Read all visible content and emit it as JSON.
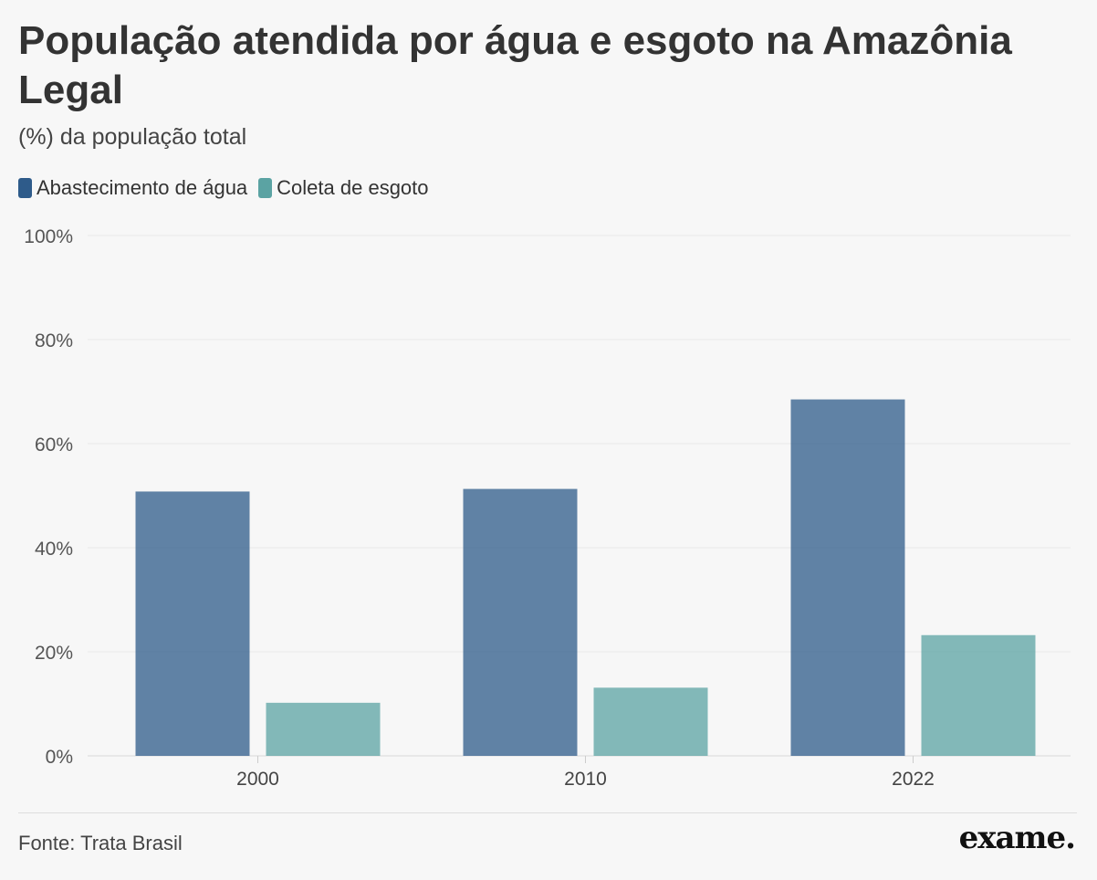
{
  "title": "População atendida por água e esgoto na Amazônia Legal",
  "subtitle": "(%) da população total",
  "source": "Fonte: Trata Brasil",
  "brand": "exame.",
  "colors": {
    "agua": "#2e5b8a",
    "esgoto": "#5ba3a3"
  },
  "chart_data": {
    "type": "bar",
    "title": "População atendida por água e esgoto na Amazônia Legal",
    "subtitle": "(%) da população total",
    "categories": [
      "2000",
      "2010",
      "2022"
    ],
    "series": [
      {
        "name": "Abastecimento de água",
        "values": [
          50.8,
          51.3,
          68.5
        ],
        "color": "#2e5b8a"
      },
      {
        "name": "Coleta de esgoto",
        "values": [
          10.2,
          13.1,
          23.2
        ],
        "color": "#5ba3a3"
      }
    ],
    "ylim": [
      0,
      100
    ],
    "yticks": [
      "0%",
      "20%",
      "40%",
      "60%",
      "80%",
      "100%"
    ],
    "ytick_values": [
      0,
      20,
      40,
      60,
      80,
      100
    ],
    "grid": true,
    "legend": "top-left"
  }
}
